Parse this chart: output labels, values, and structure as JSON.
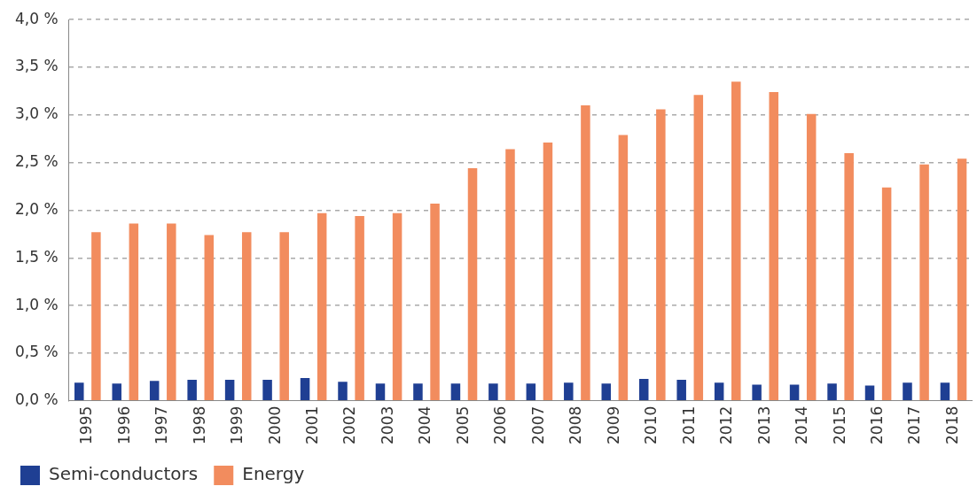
{
  "chart_data": {
    "type": "bar",
    "categories": [
      "1995",
      "1996",
      "1997",
      "1998",
      "1999",
      "2000",
      "2001",
      "2002",
      "2003",
      "2004",
      "2005",
      "2006",
      "2007",
      "2008",
      "2009",
      "2010",
      "2011",
      "2012",
      "2013",
      "2014",
      "2015",
      "2016",
      "2017",
      "2018"
    ],
    "series": [
      {
        "name": "Semi-conductors",
        "color": "#1f3f93",
        "values": [
          0.19,
          0.18,
          0.21,
          0.22,
          0.22,
          0.22,
          0.24,
          0.2,
          0.18,
          0.18,
          0.18,
          0.18,
          0.18,
          0.19,
          0.18,
          0.23,
          0.22,
          0.19,
          0.17,
          0.17,
          0.18,
          0.16,
          0.19,
          0.19
        ]
      },
      {
        "name": "Energy",
        "color": "#f28c5e",
        "values": [
          1.77,
          1.86,
          1.86,
          1.74,
          1.77,
          1.77,
          1.97,
          1.94,
          1.97,
          2.07,
          2.44,
          2.64,
          2.71,
          3.1,
          2.79,
          3.06,
          3.21,
          3.35,
          3.24,
          3.01,
          2.6,
          2.24,
          2.48,
          2.54
        ]
      }
    ],
    "ylim": [
      0,
      4
    ],
    "yticks": [
      {
        "value": 0,
        "label": "0,0 %"
      },
      {
        "value": 0.5,
        "label": "0,5 %"
      },
      {
        "value": 1,
        "label": "1,0 %"
      },
      {
        "value": 1.5,
        "label": "1,5 %"
      },
      {
        "value": 2,
        "label": "2,0 %"
      },
      {
        "value": 2.5,
        "label": "2,5 %"
      },
      {
        "value": 3,
        "label": "3,0 %"
      },
      {
        "value": 3.5,
        "label": "3,5 %"
      },
      {
        "value": 4,
        "label": "4,0 %"
      }
    ],
    "grid": "y",
    "legend": "bottom"
  }
}
